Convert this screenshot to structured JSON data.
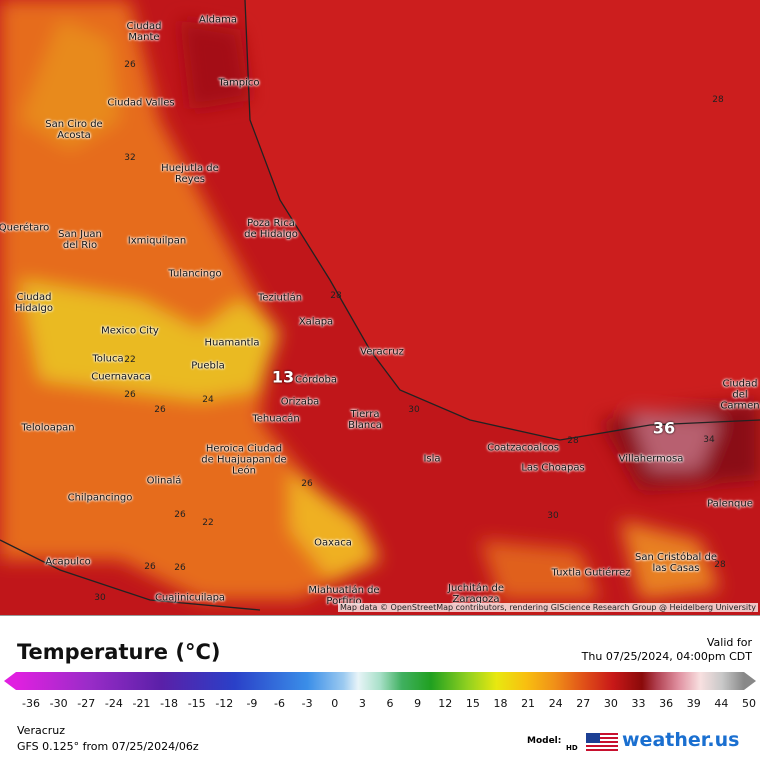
{
  "map": {
    "cities": [
      "Aldama",
      "Ciudad Mante",
      "Tampico",
      "Ciudad Valles",
      "San Ciro de Acosta",
      "Huejutla de Reyes",
      "Poza Rica de Hidalgo",
      "San Juan del Rio",
      "Ixmiquilpan",
      "Querétaro",
      "Tulancingo",
      "Teziutlán",
      "Ciudad Hidalgo",
      "Xalapa",
      "Mexico City",
      "Huamantla",
      "Toluca",
      "Veracruz",
      "Cuernavaca",
      "Puebla",
      "Córdoba",
      "Orizaba",
      "Tierra Blanca",
      "Tehuacán",
      "Teloloapan",
      "Heroica Ciudad de Huajuapan de León",
      "Coatzacoalcos",
      "Isla",
      "Las Choapas",
      "Villahermosa",
      "Olinalá",
      "Chilpancingo",
      "Palenque",
      "Oaxaca",
      "San Cristóbal de las Casas",
      "Acapulco",
      "Tuxtla Gutiérrez",
      "Juchitán de Zaragoza",
      "Miahuatlán de Porfirio",
      "Cuajinicuilapa",
      "Ciudad del Carmen"
    ],
    "contour_labels": [
      26,
      32,
      28,
      28,
      22,
      24,
      26,
      26,
      30,
      28,
      34,
      36,
      13,
      26,
      26,
      22,
      30,
      26,
      26,
      30,
      28
    ],
    "attribution": "Map data © OpenStreetMap contributors, rendering GIScience Research Group @ Heidelberg University"
  },
  "legend": {
    "title": "Temperature (°C)",
    "ticks": [
      -36,
      -30,
      -27,
      -24,
      -21,
      -18,
      -15,
      -12,
      -9,
      -6,
      -3,
      0,
      3,
      6,
      9,
      12,
      15,
      18,
      21,
      24,
      27,
      30,
      33,
      36,
      39,
      44,
      50
    ]
  },
  "valid": {
    "label": "Valid for",
    "time": "Thu 07/25/2024, 04:00pm CDT"
  },
  "footer": {
    "location": "Veracruz",
    "model_run": "GFS 0.125° from  07/25/2024/06z",
    "model_label": "Model:",
    "hd": "HD",
    "brand": "weather.us"
  }
}
